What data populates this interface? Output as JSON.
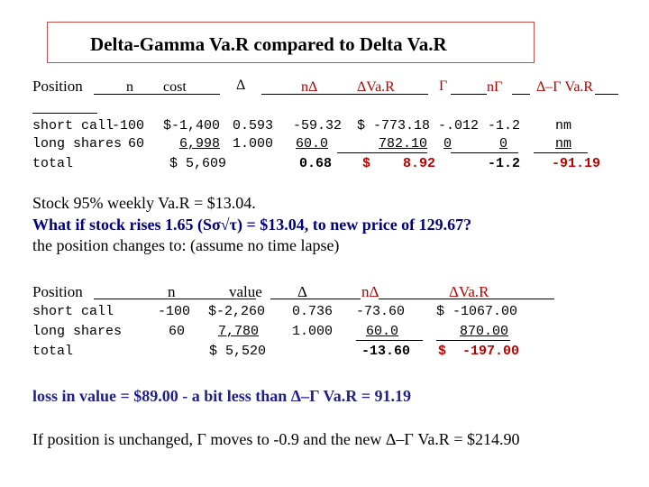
{
  "title": "Delta-Gamma Va.R compared to Delta Va.R",
  "table1": {
    "headers": [
      "Position",
      "n",
      "cost",
      "Δ",
      "nΔ",
      "ΔVa.R",
      "Γ",
      "nΓ",
      "Δ–Γ Va.R"
    ],
    "rows": [
      [
        "short call",
        "-100",
        "$-1,400",
        "0.593",
        "-59.32",
        "$ -773.18",
        "-.012",
        "-1.2",
        "nm"
      ],
      [
        "long shares",
        "60",
        "6,998",
        "1.000",
        "60.0",
        "782.10",
        "0",
        "0",
        "nm"
      ],
      [
        "total",
        "",
        "$ 5,609",
        "",
        "0.68",
        "$    8.92",
        "",
        "-1.2",
        "-91.19"
      ]
    ]
  },
  "notes": {
    "line1": "Stock 95% weekly Va.R = $13.04.",
    "line2": "What if stock rises 1.65 (Sσ√τ) = $13.04,  to new price of 129.67?",
    "line3": "the position changes to: (assume no time lapse)"
  },
  "table2": {
    "headers": [
      "Position",
      "n",
      "value",
      "Δ",
      "nΔ",
      "ΔVa.R"
    ],
    "rows": [
      [
        "short call",
        "-100",
        "$-2,260",
        "0.736",
        "-73.60",
        "$ -1067.00"
      ],
      [
        "long shares",
        "60",
        "7,780",
        "1.000",
        "60.0",
        "870.00"
      ],
      [
        "total",
        "",
        "$ 5,520",
        "",
        "-13.60",
        "$  -197.00"
      ]
    ]
  },
  "conclusion": "loss in value = $89.00  - a bit less than Δ–Γ Va.R = 91.19",
  "footer": "If position is unchanged, Γ moves to -0.9 and the new  Δ–Γ Va.R = $214.90"
}
